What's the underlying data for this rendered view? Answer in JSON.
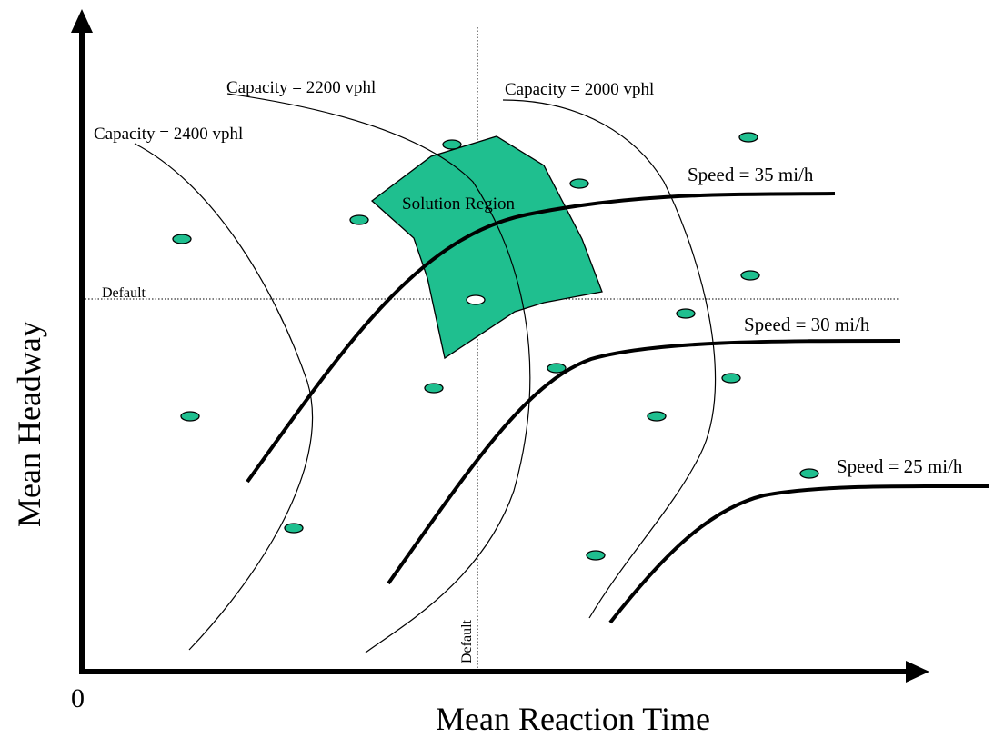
{
  "axes": {
    "x_title": "Mean Reaction Time",
    "y_title": "Mean Headway",
    "origin": "0"
  },
  "defaults": {
    "horizontal_label": "Default",
    "vertical_label": "Default"
  },
  "capacity_curves": [
    {
      "label": "Capacity = 2400 vphl"
    },
    {
      "label": "Capacity = 2200 vphl"
    },
    {
      "label": "Capacity = 2000 vphl"
    }
  ],
  "speed_curves": [
    {
      "label": "Speed = 35 mi/h"
    },
    {
      "label": "Speed = 30 mi/h"
    },
    {
      "label": "Speed = 25 mi/h"
    }
  ],
  "solution_region": {
    "label": "Solution Region"
  },
  "colors": {
    "fill": "#1FBF8F",
    "lines": "#000000",
    "background": "#FFFFFF"
  }
}
